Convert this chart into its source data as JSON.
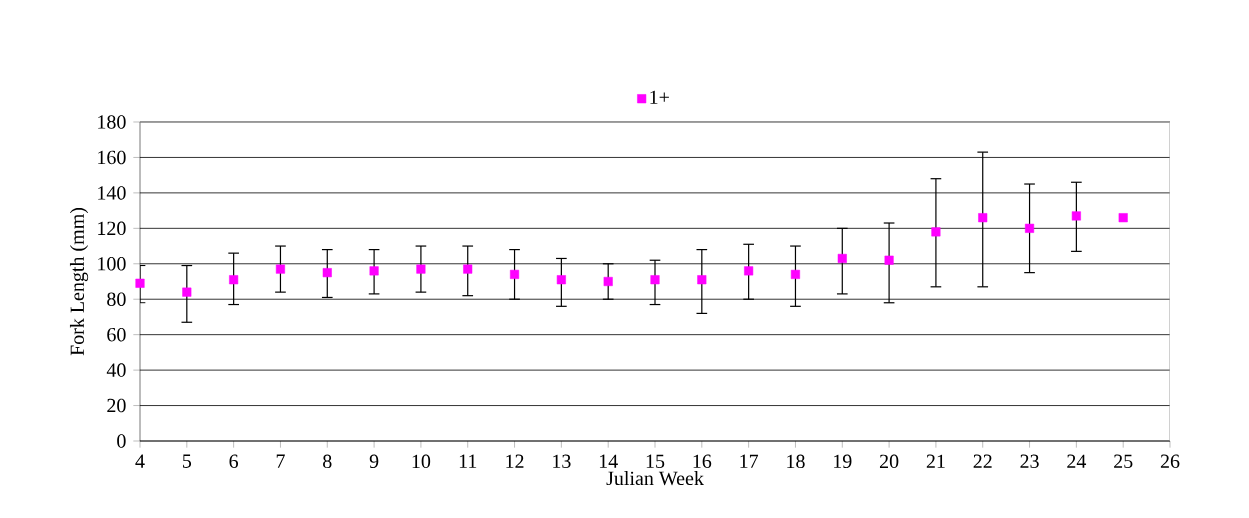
{
  "chart_data": {
    "type": "scatter",
    "xlabel": "Julian Week",
    "ylabel": "Fork Length (mm)",
    "x": [
      4,
      5,
      6,
      7,
      8,
      9,
      10,
      11,
      12,
      13,
      14,
      15,
      16,
      17,
      18,
      19,
      20,
      21,
      22,
      23,
      24,
      25
    ],
    "series": [
      {
        "name": "1+",
        "color": "#ff00ff",
        "values": [
          89,
          84,
          91,
          97,
          95,
          96,
          97,
          97,
          94,
          91,
          90,
          91,
          91,
          96,
          94,
          103,
          102,
          118,
          126,
          120,
          127,
          126
        ],
        "errors": [
          [
            78,
            99
          ],
          [
            67,
            99
          ],
          [
            77,
            106
          ],
          [
            84,
            110
          ],
          [
            81,
            108
          ],
          [
            83,
            108
          ],
          [
            84,
            110
          ],
          [
            82,
            110
          ],
          [
            80,
            108
          ],
          [
            76,
            103
          ],
          [
            80,
            100
          ],
          [
            77,
            102
          ],
          [
            72,
            108
          ],
          [
            80,
            111
          ],
          [
            76,
            110
          ],
          [
            83,
            120
          ],
          [
            78,
            123
          ],
          [
            87,
            148
          ],
          [
            87,
            163
          ],
          [
            95,
            145
          ],
          [
            107,
            146
          ],
          null
        ]
      }
    ],
    "xlim": [
      4,
      26
    ],
    "xticks": [
      4,
      5,
      6,
      7,
      8,
      9,
      10,
      11,
      12,
      13,
      14,
      15,
      16,
      17,
      18,
      19,
      20,
      21,
      22,
      23,
      24,
      25,
      26
    ],
    "ylim": [
      0,
      180
    ],
    "yticks": [
      0,
      20,
      40,
      60,
      80,
      100,
      120,
      140,
      160,
      180
    ],
    "grid": "y",
    "legend": "top",
    "marker": "square"
  }
}
